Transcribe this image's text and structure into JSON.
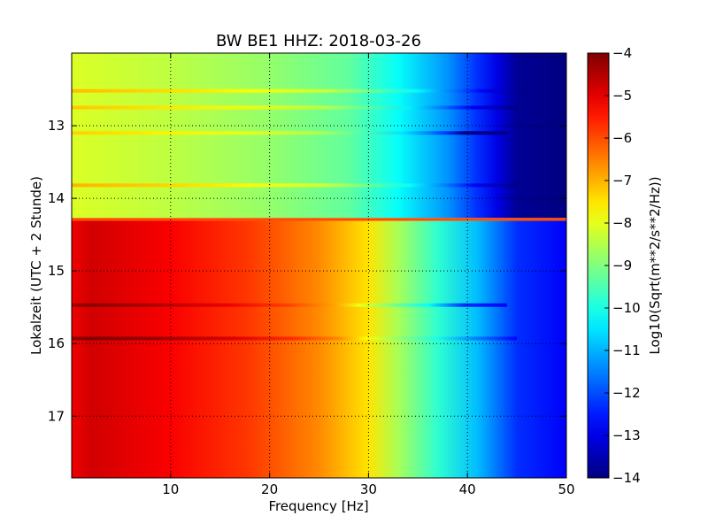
{
  "chart_data": {
    "type": "heatmap",
    "title": "BW BE1 HHZ: 2018-03-26",
    "xlabel": "Frequency [Hz]",
    "ylabel": "Lokalzeit (UTC + 2 Stunde)",
    "xlim": [
      0,
      50
    ],
    "ylim": [
      17.85,
      12.0
    ],
    "x_ticks": [
      10,
      20,
      30,
      40,
      50
    ],
    "y_ticks": [
      13,
      14,
      15,
      16,
      17
    ],
    "grid": true,
    "colormap": "jet",
    "colorbar": {
      "label": "Log10(Sqrt(m**2/s**2/Hz))",
      "range": [
        -14,
        -4
      ],
      "ticks": [
        -4,
        -5,
        -6,
        -7,
        -8,
        -9,
        -10,
        -11,
        -12,
        -13,
        -14
      ]
    },
    "regimes": [
      {
        "time_range": [
          12.0,
          14.27
        ],
        "profile": [
          {
            "freq": 0,
            "value": -8.1
          },
          {
            "freq": 10,
            "value": -8.4
          },
          {
            "freq": 20,
            "value": -8.8
          },
          {
            "freq": 28,
            "value": -9.3
          },
          {
            "freq": 33,
            "value": -10.2
          },
          {
            "freq": 38,
            "value": -11.3
          },
          {
            "freq": 41,
            "value": -12.3
          },
          {
            "freq": 43,
            "value": -13.0
          },
          {
            "freq": 45,
            "value": -13.8
          },
          {
            "freq": 50,
            "value": -14.0
          }
        ]
      },
      {
        "time_range": [
          14.31,
          17.85
        ],
        "profile": [
          {
            "freq": 0,
            "value": -5.1
          },
          {
            "freq": 2,
            "value": -4.8
          },
          {
            "freq": 10,
            "value": -5.2
          },
          {
            "freq": 18,
            "value": -5.8
          },
          {
            "freq": 25,
            "value": -6.6
          },
          {
            "freq": 30,
            "value": -7.5
          },
          {
            "freq": 33,
            "value": -8.6
          },
          {
            "freq": 37,
            "value": -9.8
          },
          {
            "freq": 41,
            "value": -10.9
          },
          {
            "freq": 45,
            "value": -12.3
          },
          {
            "freq": 50,
            "value": -12.8
          }
        ]
      }
    ],
    "transition_band": {
      "time_range": [
        14.27,
        14.31
      ],
      "value": -6.0
    },
    "streaks": [
      {
        "time": 12.52,
        "delta": 1.0,
        "freq_max": 46
      },
      {
        "time": 12.75,
        "delta": 0.9,
        "freq_max": 45
      },
      {
        "time": 13.1,
        "delta": 0.8,
        "freq_max": 44
      },
      {
        "time": 13.82,
        "delta": 1.1,
        "freq_max": 45
      },
      {
        "time": 15.47,
        "delta": 0.7,
        "freq_max": 44
      },
      {
        "time": 15.93,
        "delta": 0.9,
        "freq_max": 45
      }
    ]
  }
}
